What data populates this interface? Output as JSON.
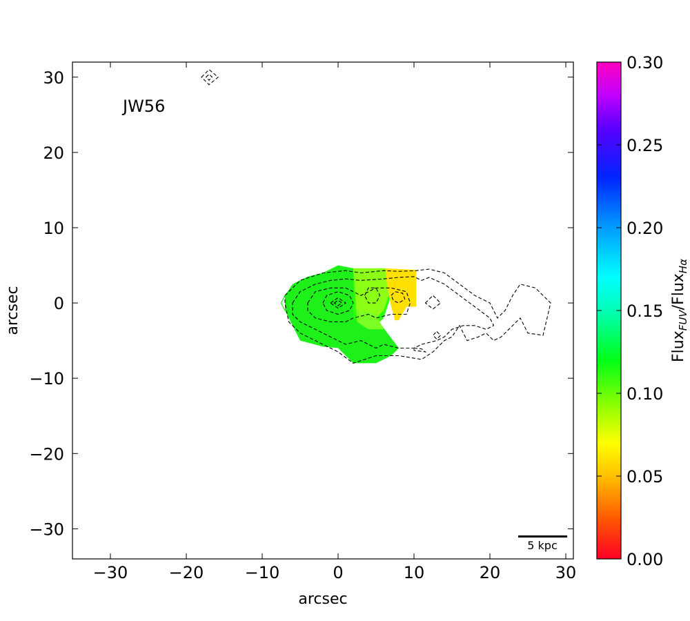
{
  "chart_data": {
    "type": "heatmap",
    "title": "",
    "xlabel": "arcsec",
    "ylabel": "arcsec",
    "xlim": [
      -35,
      31
    ],
    "ylim": [
      -34,
      32
    ],
    "x_ticks": [
      -30,
      -20,
      -10,
      0,
      10,
      20,
      30
    ],
    "y_ticks": [
      -30,
      -20,
      -10,
      0,
      10,
      20,
      30
    ],
    "x_tick_labels": [
      "−30",
      "−20",
      "−10",
      "0",
      "10",
      "20",
      "30"
    ],
    "y_tick_labels": [
      "−30",
      "−20",
      "−10",
      "0",
      "10",
      "20",
      "30"
    ],
    "annotations": {
      "galaxy_name": "JW56",
      "scale_bar_label": "5 kpc"
    },
    "colorbar": {
      "label_main": "Flux",
      "label_sub_num": "FUV",
      "label_slash": "/Flux",
      "label_sub_den": "Hα",
      "range": [
        0.0,
        0.3
      ],
      "ticks": [
        0.0,
        0.05,
        0.1,
        0.15,
        0.2,
        0.25,
        0.3
      ],
      "tick_labels": [
        "0.00",
        "0.05",
        "0.10",
        "0.15",
        "0.20",
        "0.25",
        "0.30"
      ],
      "colormap": "gist_rainbow_r",
      "stops": [
        {
          "v": 0.0,
          "color": "#ff0026"
        },
        {
          "v": 0.025,
          "color": "#ff5a00"
        },
        {
          "v": 0.05,
          "color": "#ffc000"
        },
        {
          "v": 0.07,
          "color": "#ffff00"
        },
        {
          "v": 0.09,
          "color": "#9cff00"
        },
        {
          "v": 0.12,
          "color": "#00ff16"
        },
        {
          "v": 0.15,
          "color": "#00ffb6"
        },
        {
          "v": 0.17,
          "color": "#00ffff"
        },
        {
          "v": 0.2,
          "color": "#009cff"
        },
        {
          "v": 0.23,
          "color": "#0025ff"
        },
        {
          "v": 0.26,
          "color": "#5a00ff"
        },
        {
          "v": 0.28,
          "color": "#c000ff"
        },
        {
          "v": 0.3,
          "color": "#ff00bf"
        }
      ]
    },
    "ratio_regions": [
      {
        "color": "#1ef01a",
        "points": [
          [
            -7,
            1
          ],
          [
            -6,
            2.5
          ],
          [
            -4,
            3.5
          ],
          [
            -2,
            4
          ],
          [
            0,
            5
          ],
          [
            2,
            4.6
          ],
          [
            2,
            2
          ],
          [
            3,
            1
          ],
          [
            4,
            -1
          ],
          [
            5,
            -2
          ],
          [
            6.5,
            -4
          ],
          [
            8,
            -6
          ],
          [
            7,
            -7
          ],
          [
            5,
            -8
          ],
          [
            2,
            -8
          ],
          [
            0,
            -6
          ],
          [
            -2,
            -5.8
          ],
          [
            -5,
            -5
          ],
          [
            -6,
            -3
          ],
          [
            -7,
            -1
          ]
        ]
      },
      {
        "color": "#2dff10",
        "points": [
          [
            2,
            4.6
          ],
          [
            6,
            4.6
          ],
          [
            6.5,
            3
          ],
          [
            7,
            1
          ],
          [
            6,
            -2
          ],
          [
            5,
            -3
          ],
          [
            3.5,
            -3
          ],
          [
            2,
            -2
          ]
        ]
      },
      {
        "color": "#8bff15",
        "points": [
          [
            2,
            4.6
          ],
          [
            6.5,
            4.6
          ],
          [
            7,
            2
          ],
          [
            6,
            -1
          ],
          [
            4,
            -3
          ],
          [
            2.5,
            -2.5
          ]
        ]
      },
      {
        "color": "#7cff22",
        "points": [
          [
            2.5,
            -1
          ],
          [
            5,
            -1.5
          ],
          [
            6,
            -3.5
          ],
          [
            4,
            -3.5
          ],
          [
            2.5,
            -2.5
          ]
        ]
      },
      {
        "color": "#ffe000",
        "points": [
          [
            6.2,
            4.6
          ],
          [
            10.3,
            4.4
          ],
          [
            10.3,
            -0.5
          ],
          [
            9,
            -0.5
          ],
          [
            8,
            -2.3
          ],
          [
            7.5,
            -2.3
          ],
          [
            7,
            -0.5
          ],
          [
            6.5,
            2
          ]
        ]
      }
    ],
    "contours": [
      {
        "style": "dashed",
        "points": [
          [
            -7,
            1
          ],
          [
            -5,
            3
          ],
          [
            -2,
            4
          ],
          [
            1,
            4.3
          ],
          [
            3,
            4
          ],
          [
            6,
            4.3
          ],
          [
            8,
            4.2
          ],
          [
            10.3,
            4.3
          ],
          [
            12,
            4.5
          ],
          [
            14,
            4
          ],
          [
            16,
            2.5
          ],
          [
            18,
            1
          ],
          [
            20,
            0
          ],
          [
            21,
            -2
          ],
          [
            22,
            -1
          ],
          [
            23,
            1
          ],
          [
            24,
            2.5
          ],
          [
            26,
            2
          ],
          [
            28,
            0
          ],
          [
            27,
            -4.3
          ],
          [
            25,
            -4
          ],
          [
            24,
            -2
          ],
          [
            22.5,
            -3.5
          ],
          [
            21.5,
            -4.5
          ],
          [
            20.5,
            -5
          ],
          [
            19.5,
            -4
          ],
          [
            18.5,
            -4.5
          ],
          [
            17,
            -5
          ],
          [
            16,
            -3
          ],
          [
            15,
            -4.5
          ],
          [
            14,
            -5
          ],
          [
            13,
            -6
          ],
          [
            12.5,
            -6.5
          ],
          [
            11,
            -7.5
          ],
          [
            8,
            -7
          ],
          [
            5,
            -7
          ],
          [
            2,
            -8
          ],
          [
            0,
            -6.5
          ],
          [
            -2,
            -5.5
          ],
          [
            -5,
            -4
          ],
          [
            -6.5,
            -2.5
          ],
          [
            -7,
            0
          ]
        ]
      },
      {
        "style": "dashed",
        "points": [
          [
            -6,
            0
          ],
          [
            -5,
            1.5
          ],
          [
            -3,
            2.5
          ],
          [
            -1,
            3
          ],
          [
            1,
            3.2
          ],
          [
            3,
            3
          ],
          [
            6,
            3.2
          ],
          [
            8,
            3.4
          ],
          [
            10,
            3.5
          ],
          [
            11,
            3
          ],
          [
            12,
            3.4
          ],
          [
            14,
            2.5
          ],
          [
            16,
            1
          ],
          [
            18,
            -0.5
          ],
          [
            20,
            -2
          ],
          [
            20.5,
            -3
          ],
          [
            19.5,
            -3.5
          ],
          [
            18,
            -3
          ],
          [
            16.5,
            -3
          ],
          [
            15,
            -3.5
          ],
          [
            14,
            -4.5
          ],
          [
            13,
            -5
          ],
          [
            11,
            -5.5
          ],
          [
            10,
            -6
          ],
          [
            8,
            -6
          ],
          [
            6,
            -5.5
          ],
          [
            5,
            -6
          ],
          [
            3,
            -5
          ],
          [
            1,
            -5.5
          ],
          [
            -1,
            -4.5
          ],
          [
            -3,
            -3.5
          ],
          [
            -5,
            -2.5
          ],
          [
            -6,
            -1.5
          ]
        ]
      },
      {
        "style": "dashed",
        "points": [
          [
            -4,
            0
          ],
          [
            -3,
            1.5
          ],
          [
            -1,
            2
          ],
          [
            1,
            2
          ],
          [
            2,
            1.5
          ],
          [
            3,
            1
          ],
          [
            5,
            2
          ],
          [
            7,
            2
          ],
          [
            9,
            1.5
          ],
          [
            9.5,
            0
          ],
          [
            9,
            -1.5
          ],
          [
            7,
            -1.5
          ],
          [
            5,
            -2
          ],
          [
            4,
            -1.5
          ],
          [
            2,
            -2
          ],
          [
            1,
            -2.5
          ],
          [
            -1,
            -2.5
          ],
          [
            -3,
            -2
          ],
          [
            -4,
            -1
          ]
        ]
      },
      {
        "style": "dashed",
        "points": [
          [
            -2,
            0
          ],
          [
            -1.5,
            1
          ],
          [
            0,
            1.5
          ],
          [
            1.5,
            1
          ],
          [
            2,
            0
          ],
          [
            1.5,
            -1
          ],
          [
            0,
            -1.5
          ],
          [
            -1.5,
            -1
          ]
        ]
      },
      {
        "style": "dashed",
        "points": [
          [
            -1,
            0
          ],
          [
            0,
            0.7
          ],
          [
            1,
            0
          ],
          [
            0,
            -0.7
          ]
        ]
      },
      {
        "style": "dashed",
        "points": [
          [
            -0.5,
            0
          ],
          [
            0,
            0.35
          ],
          [
            0.5,
            0
          ],
          [
            0,
            -0.35
          ]
        ]
      },
      {
        "style": "dashed",
        "points": [
          [
            3.5,
            1
          ],
          [
            4,
            2
          ],
          [
            5,
            2
          ],
          [
            5.5,
            1
          ],
          [
            5,
            0
          ],
          [
            4,
            0
          ]
        ]
      },
      {
        "style": "dashed",
        "points": [
          [
            7,
            1
          ],
          [
            7.5,
            1.5
          ],
          [
            8.5,
            1.3
          ],
          [
            8.8,
            0.5
          ],
          [
            8,
            0
          ],
          [
            7.3,
            0.3
          ]
        ]
      },
      {
        "style": "dashed",
        "points": [
          [
            11.5,
            0
          ],
          [
            12.5,
            1
          ],
          [
            13.5,
            0
          ],
          [
            12.5,
            -0.8
          ]
        ]
      },
      {
        "style": "dashed",
        "points": [
          [
            13,
            -3.8
          ],
          [
            13.5,
            -4.3
          ],
          [
            13,
            -4.8
          ],
          [
            12.5,
            -4.3
          ]
        ]
      },
      {
        "style": "dashed",
        "points": [
          [
            -18,
            30
          ],
          [
            -17,
            31
          ],
          [
            -15.8,
            30
          ],
          [
            -17,
            29
          ]
        ]
      },
      {
        "style": "dashed",
        "points": [
          [
            -17.4,
            30
          ],
          [
            -17,
            30.4
          ],
          [
            -16.6,
            30
          ],
          [
            -17,
            29.6
          ]
        ]
      },
      {
        "style": "dashed",
        "points": [
          [
            10,
            -6
          ],
          [
            11,
            -6.1
          ],
          [
            11.5,
            -6.5
          ],
          [
            10,
            -6.3
          ]
        ]
      },
      {
        "style": "solid",
        "color": "#22dd22",
        "points": [
          [
            -7,
            1
          ],
          [
            -7.5,
            0
          ],
          [
            -7,
            -1
          ],
          [
            -6.5,
            -1
          ]
        ]
      }
    ]
  }
}
